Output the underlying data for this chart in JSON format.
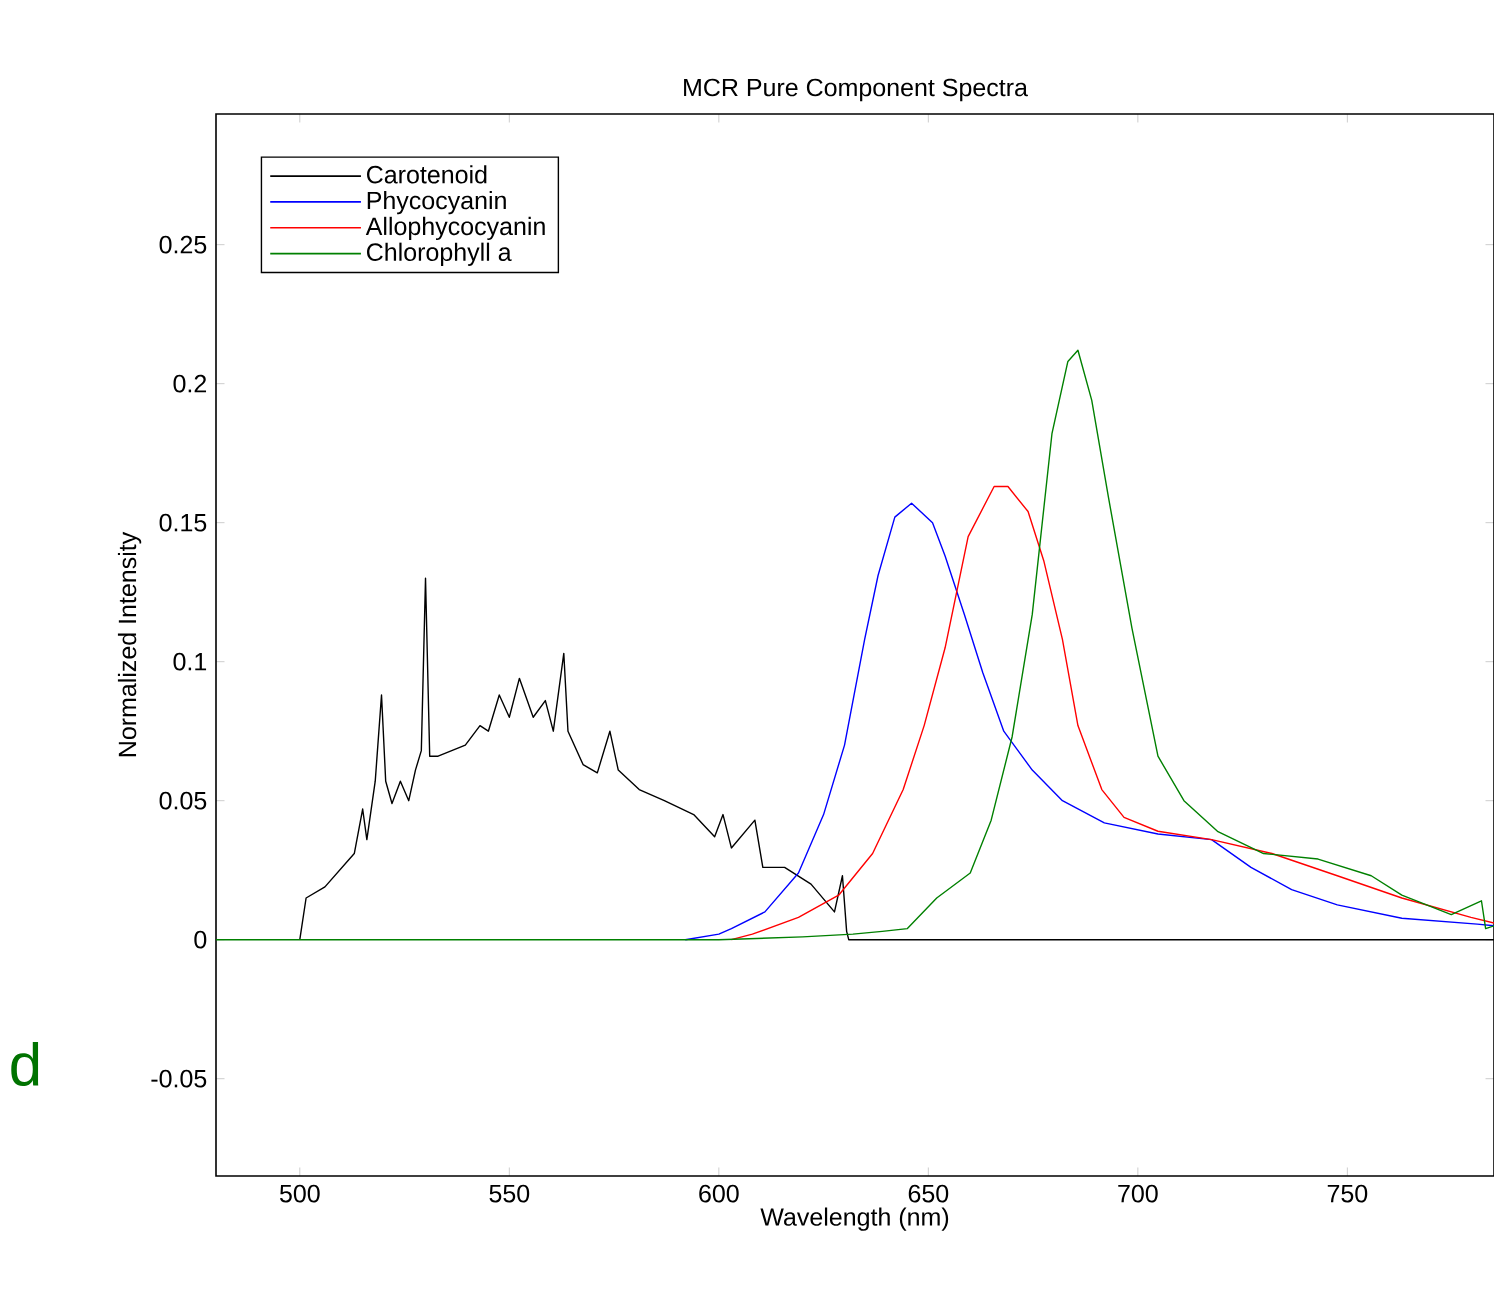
{
  "chart_data": {
    "type": "line",
    "title": "MCR Pure Component Spectra",
    "xlabel": "Wavelength (nm)",
    "ylabel": "Normalized Intensity",
    "xlim": [
      480,
      785
    ],
    "ylim": [
      -0.085,
      0.297
    ],
    "xticks": [
      500,
      550,
      600,
      650,
      700,
      750
    ],
    "yticks": [
      -0.05,
      0,
      0.05,
      0.1,
      0.15,
      0.2,
      0.25
    ],
    "legend": "top left",
    "annotations": [
      "d"
    ],
    "series": [
      {
        "name": "Carotenoid",
        "color": "#000000",
        "x": [
          500,
          501.5,
          506,
          513,
          515,
          516,
          518,
          519.5,
          520.5,
          522,
          524,
          526,
          527.6,
          529,
          530,
          531,
          533,
          539.5,
          543,
          545,
          547.6,
          550,
          552.4,
          555.7,
          558.6,
          560.5,
          563,
          564,
          567.6,
          571,
          574,
          576,
          581,
          587,
          594,
          599,
          601,
          603,
          608.6,
          610.5,
          615.7,
          622,
          627.6,
          629.5,
          630.5,
          631,
          785
        ],
        "values": [
          0,
          0.015,
          0.019,
          0.031,
          0.047,
          0.036,
          0.057,
          0.088,
          0.057,
          0.049,
          0.057,
          0.05,
          0.061,
          0.068,
          0.13,
          0.066,
          0.066,
          0.07,
          0.077,
          0.075,
          0.088,
          0.08,
          0.094,
          0.08,
          0.086,
          0.075,
          0.103,
          0.075,
          0.063,
          0.06,
          0.075,
          0.061,
          0.054,
          0.05,
          0.045,
          0.037,
          0.045,
          0.033,
          0.043,
          0.026,
          0.026,
          0.02,
          0.01,
          0.023,
          0.003,
          0,
          0
        ]
      },
      {
        "name": "Phycocyanin",
        "color": "#0000ff",
        "x": [
          592,
          600,
          603,
          611,
          619,
          625,
          630,
          634.8,
          638,
          642,
          646,
          651,
          654,
          658.6,
          663,
          668,
          674.8,
          682,
          692,
          704.8,
          717.6,
          727,
          736.7,
          747.6,
          763,
          781,
          785
        ],
        "values": [
          0,
          0.002,
          0.004,
          0.01,
          0.024,
          0.045,
          0.07,
          0.108,
          0.131,
          0.152,
          0.157,
          0.15,
          0.138,
          0.117,
          0.096,
          0.075,
          0.061,
          0.05,
          0.042,
          0.038,
          0.036,
          0.026,
          0.018,
          0.0125,
          0.0077,
          0.0056,
          0.005
        ]
      },
      {
        "name": "Allophycocyanin",
        "color": "#ff0000",
        "x": [
          603,
          608,
          619,
          628.6,
          636.7,
          644,
          649,
          654,
          659.5,
          665.7,
          669,
          673.8,
          677.6,
          682,
          685.7,
          691.4,
          696.7,
          704.8,
          717.6,
          732,
          747.6,
          763,
          779.5,
          785
        ],
        "values": [
          0,
          0.002,
          0.008,
          0.016,
          0.031,
          0.054,
          0.077,
          0.105,
          0.145,
          0.163,
          0.163,
          0.154,
          0.136,
          0.108,
          0.077,
          0.054,
          0.044,
          0.039,
          0.036,
          0.031,
          0.023,
          0.015,
          0.008,
          0.006
        ]
      },
      {
        "name": "Chlorophyll a",
        "color": "#008000",
        "x": [
          480,
          600,
          620,
          632,
          639,
          645,
          652,
          660,
          665,
          670,
          674.8,
          679.5,
          683.3,
          685.7,
          689,
          693,
          698.6,
          704.8,
          711,
          719,
          730,
          743,
          755.7,
          763,
          774.8,
          782,
          783,
          785
        ],
        "values": [
          0,
          0,
          0.001,
          0.002,
          0.003,
          0.004,
          0.015,
          0.024,
          0.043,
          0.073,
          0.117,
          0.182,
          0.208,
          0.212,
          0.194,
          0.159,
          0.112,
          0.066,
          0.05,
          0.039,
          0.031,
          0.029,
          0.023,
          0.016,
          0.009,
          0.014,
          0.004,
          0.005
        ]
      }
    ]
  }
}
